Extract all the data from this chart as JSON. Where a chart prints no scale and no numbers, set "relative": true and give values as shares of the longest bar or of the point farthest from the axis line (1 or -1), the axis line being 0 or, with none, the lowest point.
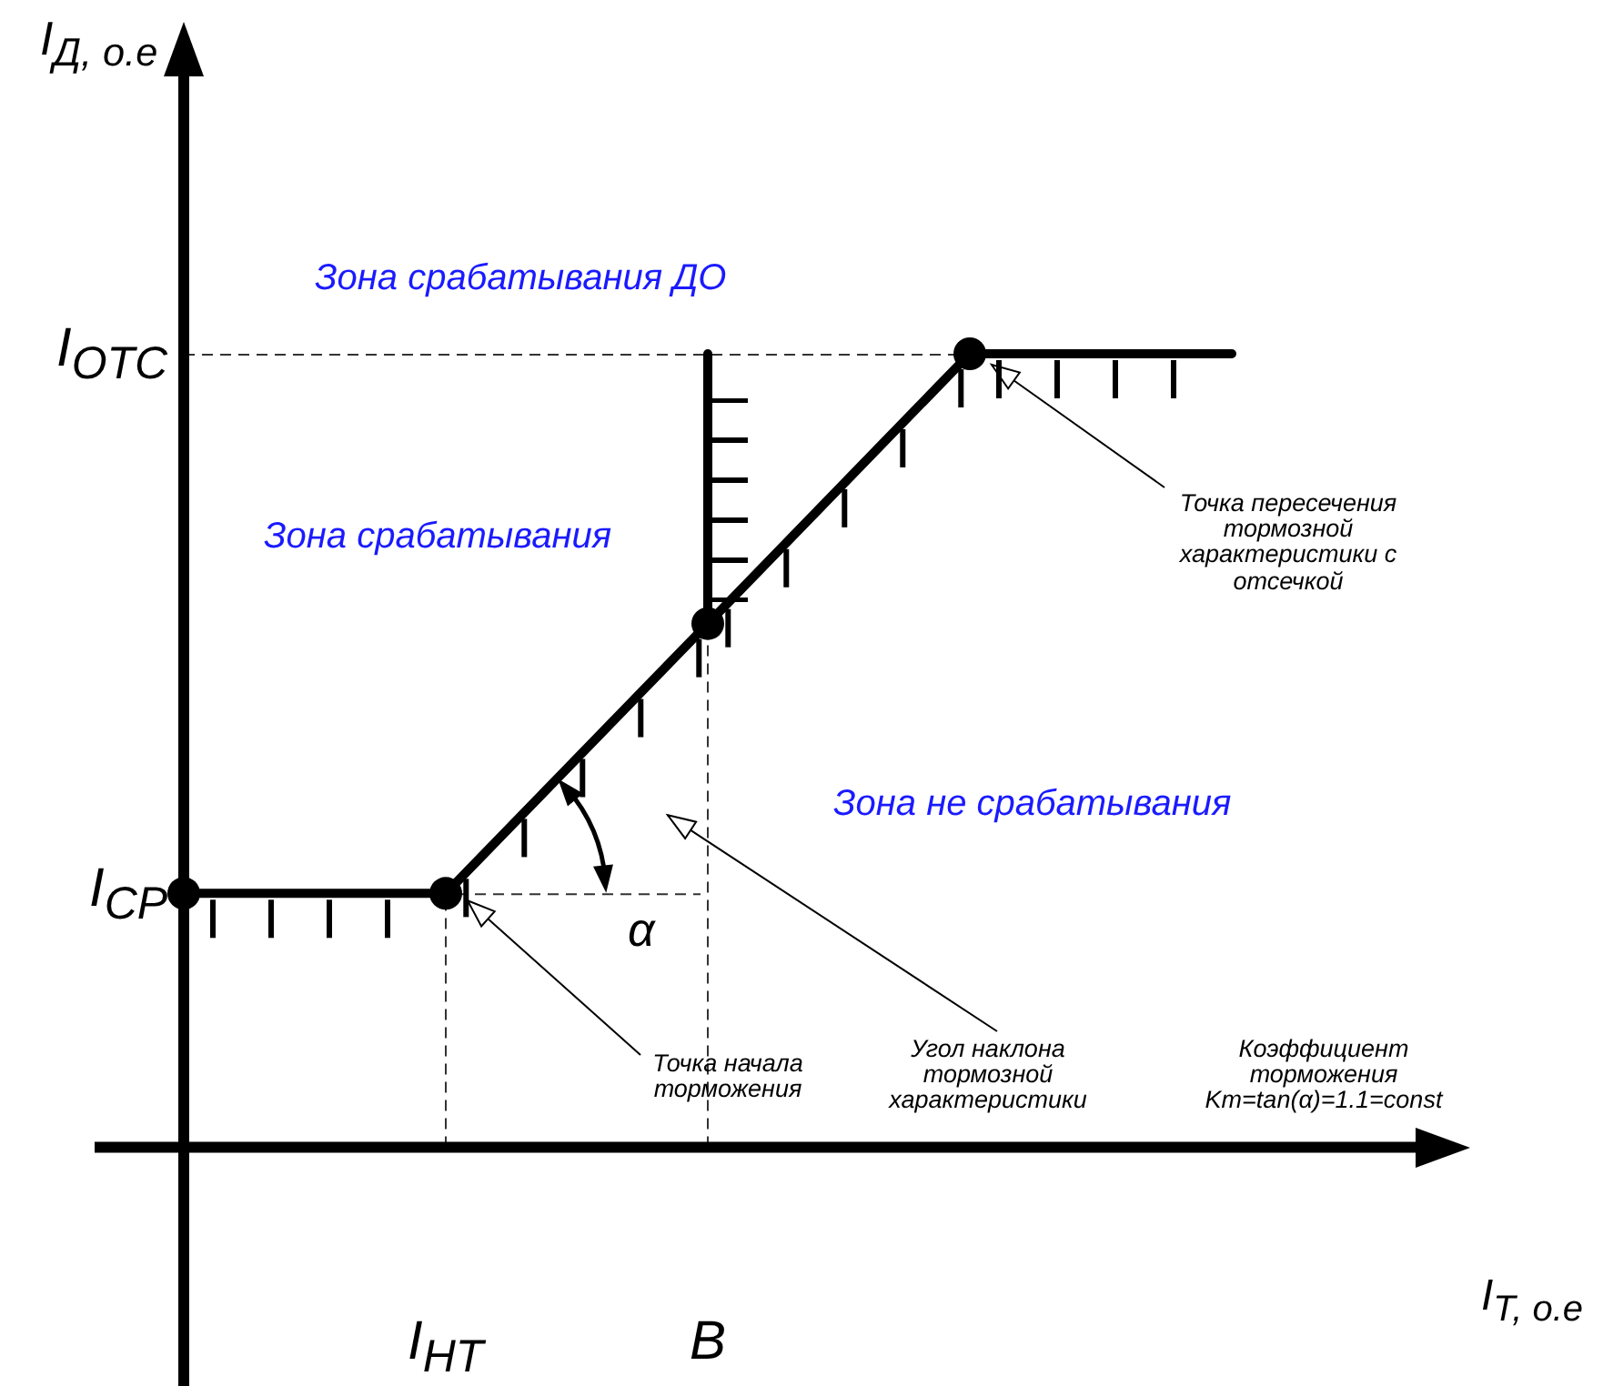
{
  "chart_data": {
    "type": "line",
    "relative": true,
    "xlabel": "I$_{Т, о.е}$",
    "categories": [
      null,
      "I$_{НТ}$",
      "B",
      null,
      null
    ],
    "series": [
      {
        "color": "#000000",
        "marker": "circle",
        "values": [
          0.32,
          0.32,
          0.66,
          1,
          null
        ]
      },
      {
        "color": "#000000",
        "values": [
          null,
          null,
          null,
          1,
          1
        ]
      },
      {
        "color": "#000000",
        "x": [
          "B",
          "B"
        ],
        "values": [
          0.66,
          1
        ]
      }
    ],
    "ref_lines": [
      {
        "axis": "x",
        "value": "I$_{НТ}$",
        "line_style": "dashed"
      },
      {
        "axis": "x",
        "value": "B",
        "line_style": "dashed"
      },
      {
        "axis": "y",
        "value": 1,
        "label": "I$_{ОТС}$",
        "line_style": "dashed"
      },
      {
        "axis": "y",
        "value": 0.32,
        "label": "I$_{СР}$",
        "line_style": "dashed"
      }
    ],
    "annotations": [
      "Зона срабатывания ДО",
      "Зона срабатывания",
      "Зона не срабатывания",
      "Точка пересечения тормозной характеристики с отсечкой",
      "Точка начала торможения",
      "Угол наклона тормозной характеристики",
      "Коэффициент торможения Km=tan(α)=1.1=const",
      "α",
      "I$_{Д, о.е}$"
    ],
    "legend": false
  }
}
